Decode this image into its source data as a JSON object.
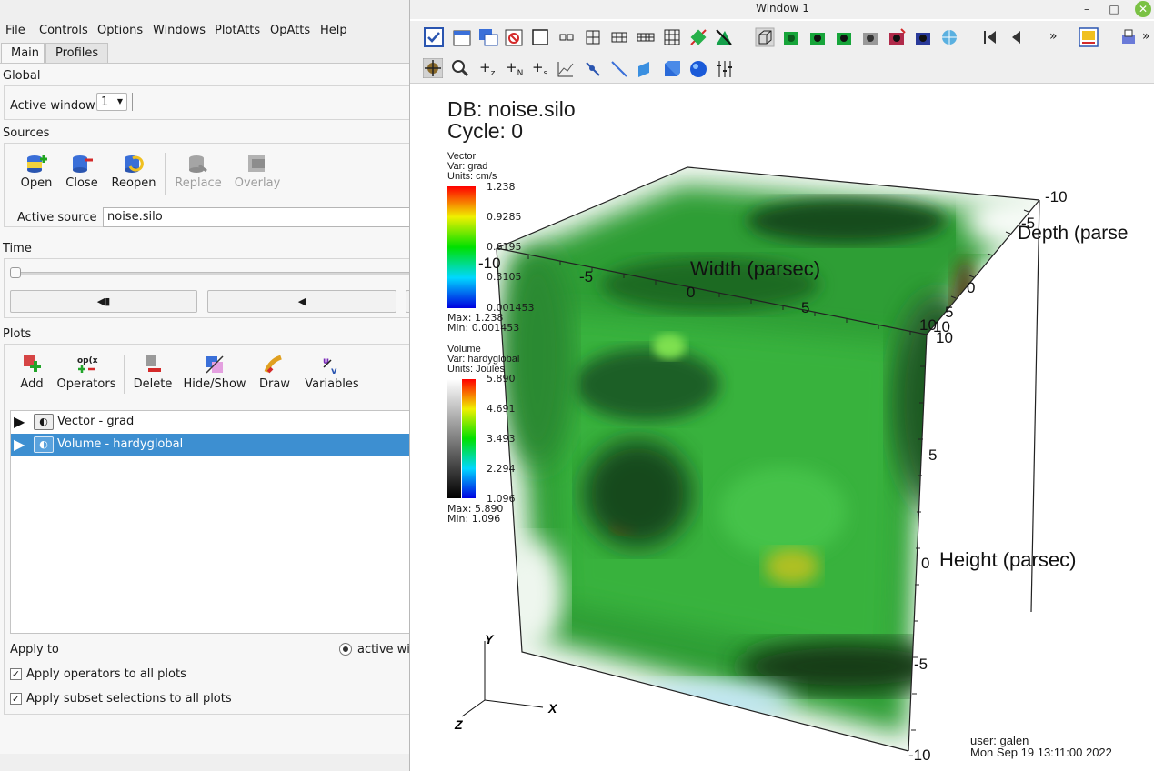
{
  "menubar": {
    "file": "File",
    "controls": "Controls",
    "options": "Options",
    "windows": "Windows",
    "plotatts": "PlotAtts",
    "opatts": "OpAtts",
    "help": "Help"
  },
  "tabs": {
    "main": "Main",
    "profiles": "Profiles"
  },
  "global": {
    "title": "Global",
    "active_window_label": "Active window",
    "active_window_value": "1"
  },
  "sources": {
    "title": "Sources",
    "open": "Open",
    "close": "Close",
    "reopen": "Reopen",
    "replace": "Replace",
    "overlay": "Overlay",
    "active_source_label": "Active source",
    "active_source_value": "noise.silo"
  },
  "time": {
    "title": "Time",
    "back_step": "◀▮",
    "play_back": "◀",
    "slider_fraction": 0.0
  },
  "plots": {
    "title": "Plots",
    "add": "Add",
    "operators": "Operators",
    "delete": "Delete",
    "hideshow": "Hide/Show",
    "draw": "Draw",
    "variables": "Variables",
    "list": [
      {
        "label": "Vector - grad",
        "selected": false
      },
      {
        "label": "Volume - hardyglobal",
        "selected": true
      }
    ],
    "apply_to_label": "Apply to",
    "apply_to_option": "active wi",
    "apply_ops_label": "Apply operators to all plots",
    "apply_ops_checked": true,
    "apply_subset_label": "Apply subset selections to all plots",
    "apply_subset_checked": true
  },
  "viswindow": {
    "title": "Window 1",
    "min_btn": "–",
    "max_btn": "□",
    "close_btn": "✕",
    "more1": "»",
    "more2": "»",
    "db_line": "DB: noise.silo",
    "cycle_line": "Cycle: 0",
    "vector_legend": {
      "plot": "Vector",
      "var": "Var: grad",
      "units": "Units: cm/s",
      "ticks": [
        "1.238",
        "0.9285",
        "0.6195",
        "0.3105",
        "0.001453"
      ],
      "max": "Max:  1.238",
      "min": "Min:  0.001453"
    },
    "volume_legend": {
      "plot": "Volume",
      "var": "Var: hardyglobal",
      "units": "Units: Joules",
      "ticks": [
        "5.890",
        "4.691",
        "3.493",
        "2.294",
        "1.096"
      ],
      "max": "Max:  5.890",
      "min": "Min:  1.096"
    },
    "axes": {
      "width_title": "Width (parsec)",
      "height_title": "Height (parsec)",
      "depth_title": "Depth (parse",
      "width_ticks": [
        "-10",
        "-5",
        "0",
        "5",
        "10"
      ],
      "height_ticks": [
        "10",
        "5",
        "0",
        "-5",
        "-10"
      ],
      "depth_ticks": [
        "-10",
        "-5",
        "0",
        "5",
        "10"
      ],
      "triad_x": "X",
      "triad_y": "Y",
      "triad_z": "Z"
    },
    "user_line": "user: galen",
    "date_line": "Mon Sep 19 13:11:00 2022"
  },
  "colors": {
    "selection": "#3d8fd1",
    "panel": "#f7f7f7",
    "chrome": "#efefef"
  }
}
